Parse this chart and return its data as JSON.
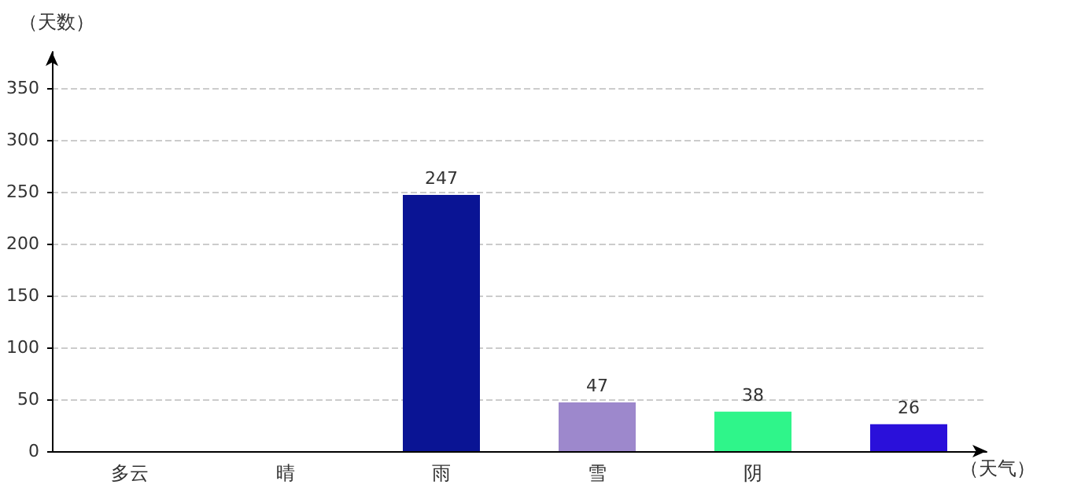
{
  "chart_data": {
    "type": "bar",
    "xlabel": "（天气）",
    "ylabel": "（天数）",
    "categories": [
      "多云",
      "晴",
      "雨",
      "雪",
      "阴",
      null
    ],
    "values": [
      null,
      null,
      247,
      47,
      38,
      26
    ],
    "value_labels": [
      null,
      null,
      "247",
      "47",
      "38",
      "26"
    ],
    "colors": [
      "#960008",
      "#c09535",
      "#0a1494",
      "#9d88cc",
      "#2ff58a",
      "#2a10da"
    ],
    "ylim": [
      0,
      385
    ],
    "yticks": [
      0,
      50,
      100,
      150,
      200,
      250,
      300,
      350
    ],
    "grid": "y"
  }
}
